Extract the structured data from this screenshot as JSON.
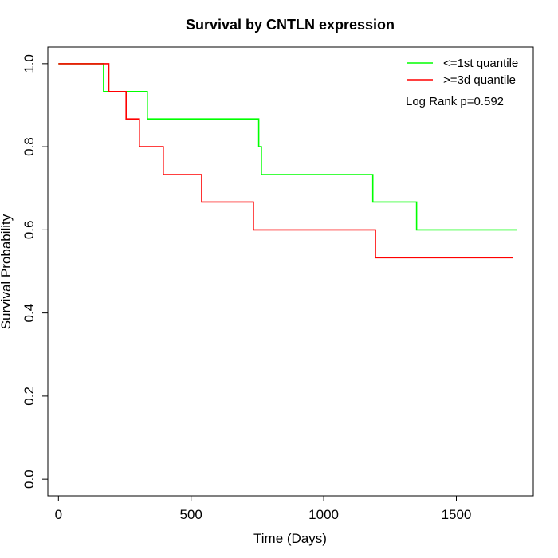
{
  "chart_data": {
    "type": "line",
    "title": "Survival by CNTLN expression",
    "xlabel": "Time (Days)",
    "ylabel": "Survival Probability",
    "xlim": [
      -40,
      1790
    ],
    "ylim": [
      -0.04,
      1.04
    ],
    "x_ticks": [
      0,
      500,
      1000,
      1500
    ],
    "x_tick_labels": [
      "0",
      "500",
      "1000",
      "1500"
    ],
    "y_ticks": [
      0.0,
      0.2,
      0.4,
      0.6,
      0.8,
      1.0
    ],
    "y_tick_labels": [
      "0.0",
      "0.2",
      "0.4",
      "0.6",
      "0.8",
      "1.0"
    ],
    "grid": false,
    "legend_position": "top-right",
    "series": [
      {
        "name": "<=1st quantile",
        "color": "#00ff00",
        "step": true,
        "points": [
          [
            0,
            1.0
          ],
          [
            170,
            1.0
          ],
          [
            170,
            0.933
          ],
          [
            335,
            0.933
          ],
          [
            335,
            0.867
          ],
          [
            755,
            0.867
          ],
          [
            755,
            0.8
          ],
          [
            765,
            0.8
          ],
          [
            765,
            0.733
          ],
          [
            1185,
            0.733
          ],
          [
            1185,
            0.667
          ],
          [
            1350,
            0.667
          ],
          [
            1350,
            0.6
          ],
          [
            1730,
            0.6
          ]
        ]
      },
      {
        "name": ">=3d quantile",
        "color": "#ff0000",
        "step": true,
        "points": [
          [
            0,
            1.0
          ],
          [
            190,
            1.0
          ],
          [
            190,
            0.933
          ],
          [
            255,
            0.933
          ],
          [
            255,
            0.867
          ],
          [
            305,
            0.867
          ],
          [
            305,
            0.8
          ],
          [
            395,
            0.8
          ],
          [
            395,
            0.733
          ],
          [
            540,
            0.733
          ],
          [
            540,
            0.667
          ],
          [
            735,
            0.667
          ],
          [
            735,
            0.6
          ],
          [
            1195,
            0.6
          ],
          [
            1195,
            0.533
          ],
          [
            1715,
            0.533
          ]
        ]
      }
    ],
    "annotation": "Log Rank p=0.592"
  }
}
